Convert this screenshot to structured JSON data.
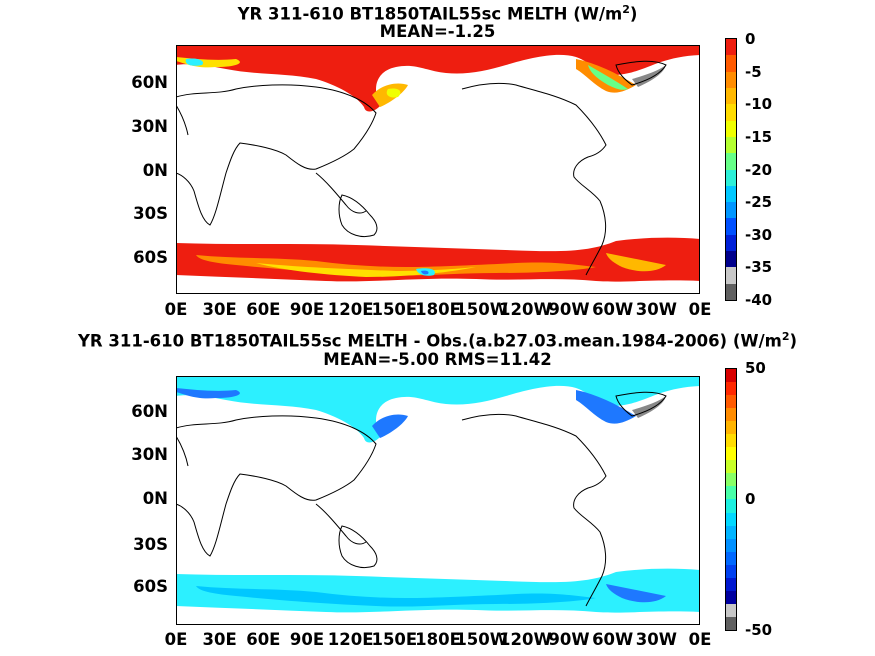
{
  "top": {
    "title_prefix": "YR 311-610 BT1850TAIL55sc  MELTH (W/m",
    "title_sup": "2",
    "title_suffix": ")",
    "subtitle": "MEAN=-1.25",
    "lat_labels": [
      "60N",
      "30N",
      "0N",
      "30S",
      "60S"
    ],
    "lon_labels": [
      "0E",
      "30E",
      "60E",
      "90E",
      "120E",
      "150E",
      "180E",
      "150W",
      "120W",
      "90W",
      "60W",
      "30W",
      "0E"
    ],
    "colorbar_labels": [
      "0",
      "-5",
      "-10",
      "-15",
      "-20",
      "-25",
      "-30",
      "-35",
      "-40"
    ]
  },
  "bottom": {
    "title_prefix": "YR 311-610 BT1850TAIL55sc MELTH - Obs.(a.b27.03.mean.1984-2006) (W/m",
    "title_sup": "2",
    "title_suffix": ")",
    "subtitle": "MEAN=-5.00 RMS=11.42",
    "lat_labels": [
      "60N",
      "30N",
      "0N",
      "30S",
      "60S"
    ],
    "lon_labels": [
      "0E",
      "30E",
      "60E",
      "90E",
      "120E",
      "150E",
      "180E",
      "150W",
      "120W",
      "90W",
      "60W",
      "30W",
      "0E"
    ],
    "colorbar_labels": [
      "50",
      "0",
      "-50"
    ]
  },
  "colors": {
    "top_colorbar": [
      "#ee1e10",
      "#ff5a00",
      "#ff8c00",
      "#ffb800",
      "#ffdc00",
      "#f0ff00",
      "#b4ff30",
      "#66ff88",
      "#2cf0d8",
      "#00c8ff",
      "#0096ff",
      "#0050ff",
      "#0020d8",
      "#00008c",
      "#c8c8c8",
      "#606060"
    ],
    "bottom_colorbar": [
      "#d80000",
      "#ff2800",
      "#ff5a00",
      "#ff8c00",
      "#ffb400",
      "#ffdc00",
      "#ffff00",
      "#c8ff28",
      "#88ff66",
      "#48ffa8",
      "#1cf0e0",
      "#00d8ff",
      "#00b4ff",
      "#0090ff",
      "#0068ff",
      "#0040f0",
      "#0018d0",
      "#0000a0",
      "#c8c8c8",
      "#606060"
    ],
    "ice_red": "#ee1e10",
    "ice_orange": "#ff7a00",
    "ice_yellow": "#ffe000",
    "ice_cyan": "#2cf0ff",
    "ice_blue": "#1e78ff",
    "gray": "#888888"
  }
}
